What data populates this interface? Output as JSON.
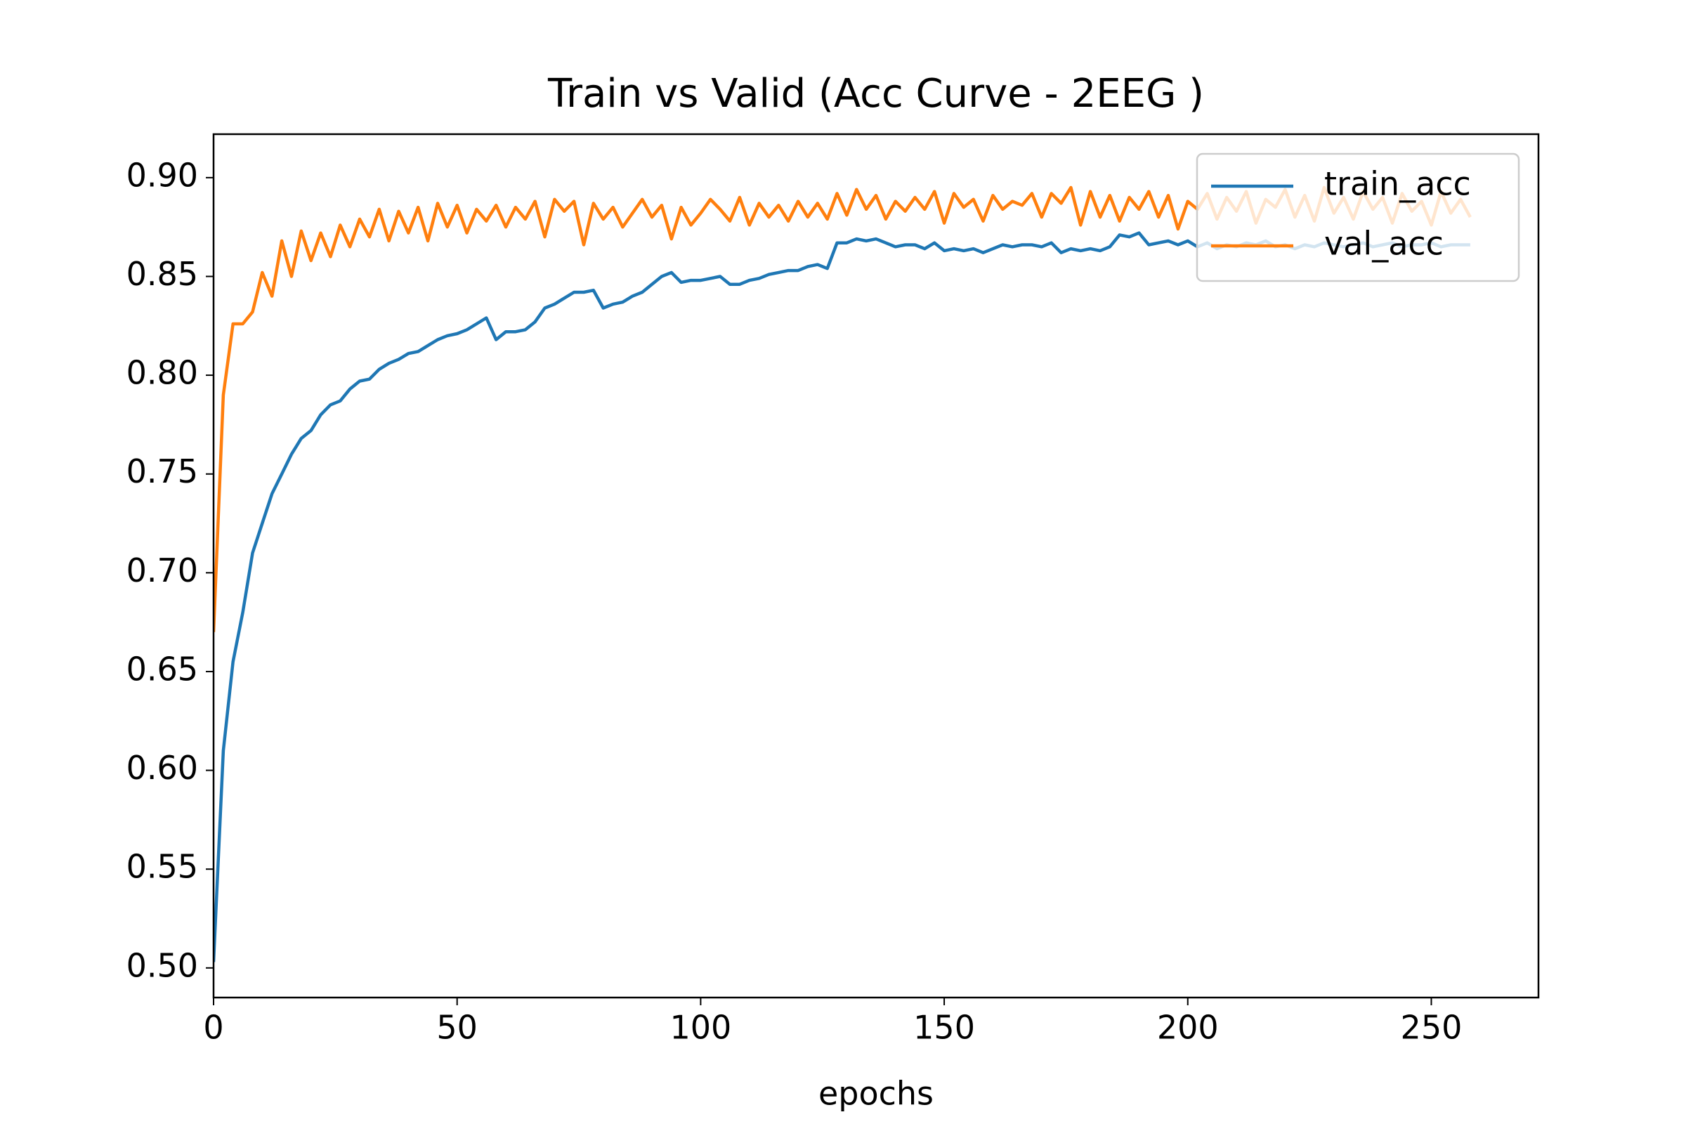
{
  "chart_data": {
    "type": "line",
    "title": "Train vs Valid  (Acc Curve - 2EEG )",
    "xlabel": "epochs",
    "x": [
      0,
      2,
      4,
      6,
      8,
      10,
      12,
      14,
      16,
      18,
      20,
      22,
      24,
      26,
      28,
      30,
      32,
      34,
      36,
      38,
      40,
      42,
      44,
      46,
      48,
      50,
      52,
      54,
      56,
      58,
      60,
      62,
      64,
      66,
      68,
      70,
      72,
      74,
      76,
      78,
      80,
      82,
      84,
      86,
      88,
      90,
      92,
      94,
      96,
      98,
      100,
      102,
      104,
      106,
      108,
      110,
      112,
      114,
      116,
      118,
      120,
      122,
      124,
      126,
      128,
      130,
      132,
      134,
      136,
      138,
      140,
      142,
      144,
      146,
      148,
      150,
      152,
      154,
      156,
      158,
      160,
      162,
      164,
      166,
      168,
      170,
      172,
      174,
      176,
      178,
      180,
      182,
      184,
      186,
      188,
      190,
      192,
      194,
      196,
      198,
      200,
      202,
      204,
      206,
      208,
      210,
      212,
      214,
      216,
      218,
      220,
      222,
      224,
      226,
      228,
      230,
      232,
      234,
      236,
      238,
      240,
      242,
      244,
      246,
      248,
      250,
      252,
      254,
      256,
      258
    ],
    "series": [
      {
        "name": "train_acc",
        "color": "#1f77b4",
        "values": [
          0.503,
          0.61,
          0.655,
          0.68,
          0.71,
          0.725,
          0.74,
          0.75,
          0.76,
          0.768,
          0.772,
          0.78,
          0.785,
          0.787,
          0.793,
          0.797,
          0.798,
          0.803,
          0.806,
          0.808,
          0.811,
          0.812,
          0.815,
          0.818,
          0.82,
          0.821,
          0.823,
          0.826,
          0.829,
          0.818,
          0.822,
          0.822,
          0.823,
          0.827,
          0.834,
          0.836,
          0.839,
          0.842,
          0.842,
          0.843,
          0.834,
          0.836,
          0.837,
          0.84,
          0.842,
          0.846,
          0.85,
          0.852,
          0.847,
          0.848,
          0.848,
          0.849,
          0.85,
          0.846,
          0.846,
          0.848,
          0.849,
          0.851,
          0.852,
          0.853,
          0.853,
          0.855,
          0.856,
          0.854,
          0.867,
          0.867,
          0.869,
          0.868,
          0.869,
          0.867,
          0.865,
          0.866,
          0.866,
          0.864,
          0.867,
          0.863,
          0.864,
          0.863,
          0.864,
          0.862,
          0.864,
          0.866,
          0.865,
          0.866,
          0.866,
          0.865,
          0.867,
          0.862,
          0.864,
          0.863,
          0.864,
          0.863,
          0.865,
          0.871,
          0.87,
          0.872,
          0.866,
          0.867,
          0.868,
          0.866,
          0.868,
          0.865,
          0.867,
          0.864,
          0.866,
          0.865,
          0.867,
          0.866,
          0.868,
          0.865,
          0.866,
          0.864,
          0.866,
          0.865,
          0.867,
          0.866,
          0.865,
          0.866,
          0.867,
          0.865,
          0.866,
          0.867,
          0.865,
          0.866,
          0.866,
          0.867,
          0.865,
          0.866,
          0.866,
          0.866
        ]
      },
      {
        "name": "val_acc",
        "color": "#ff7f0e",
        "values": [
          0.67,
          0.79,
          0.826,
          0.826,
          0.832,
          0.852,
          0.84,
          0.868,
          0.85,
          0.873,
          0.858,
          0.872,
          0.86,
          0.876,
          0.865,
          0.879,
          0.87,
          0.884,
          0.868,
          0.883,
          0.872,
          0.885,
          0.868,
          0.887,
          0.875,
          0.886,
          0.872,
          0.884,
          0.878,
          0.886,
          0.875,
          0.885,
          0.879,
          0.888,
          0.87,
          0.889,
          0.883,
          0.888,
          0.866,
          0.887,
          0.879,
          0.885,
          0.875,
          0.882,
          0.889,
          0.88,
          0.886,
          0.869,
          0.885,
          0.876,
          0.882,
          0.889,
          0.884,
          0.878,
          0.89,
          0.876,
          0.887,
          0.88,
          0.886,
          0.878,
          0.888,
          0.88,
          0.887,
          0.879,
          0.892,
          0.881,
          0.894,
          0.884,
          0.891,
          0.879,
          0.888,
          0.883,
          0.89,
          0.884,
          0.893,
          0.877,
          0.892,
          0.885,
          0.889,
          0.878,
          0.891,
          0.884,
          0.888,
          0.886,
          0.892,
          0.88,
          0.892,
          0.887,
          0.895,
          0.876,
          0.893,
          0.88,
          0.891,
          0.878,
          0.89,
          0.884,
          0.893,
          0.88,
          0.891,
          0.874,
          0.888,
          0.884,
          0.892,
          0.879,
          0.89,
          0.883,
          0.893,
          0.877,
          0.889,
          0.885,
          0.894,
          0.88,
          0.891,
          0.878,
          0.895,
          0.882,
          0.89,
          0.879,
          0.893,
          0.884,
          0.89,
          0.877,
          0.892,
          0.883,
          0.888,
          0.876,
          0.893,
          0.882,
          0.889,
          0.88
        ]
      }
    ],
    "xlim": [
      0,
      272
    ],
    "ylim": [
      0.485,
      0.922
    ],
    "xticks": [
      0,
      50,
      100,
      150,
      200,
      250
    ],
    "yticks": [
      {
        "value": 0.5,
        "label": "0.50"
      },
      {
        "value": 0.55,
        "label": "0.55"
      },
      {
        "value": 0.6,
        "label": "0.60"
      },
      {
        "value": 0.65,
        "label": "0.65"
      },
      {
        "value": 0.7,
        "label": "0.70"
      },
      {
        "value": 0.75,
        "label": "0.75"
      },
      {
        "value": 0.8,
        "label": "0.80"
      },
      {
        "value": 0.85,
        "label": "0.85"
      },
      {
        "value": 0.9,
        "label": "0.90"
      }
    ],
    "legend": "upper right"
  }
}
